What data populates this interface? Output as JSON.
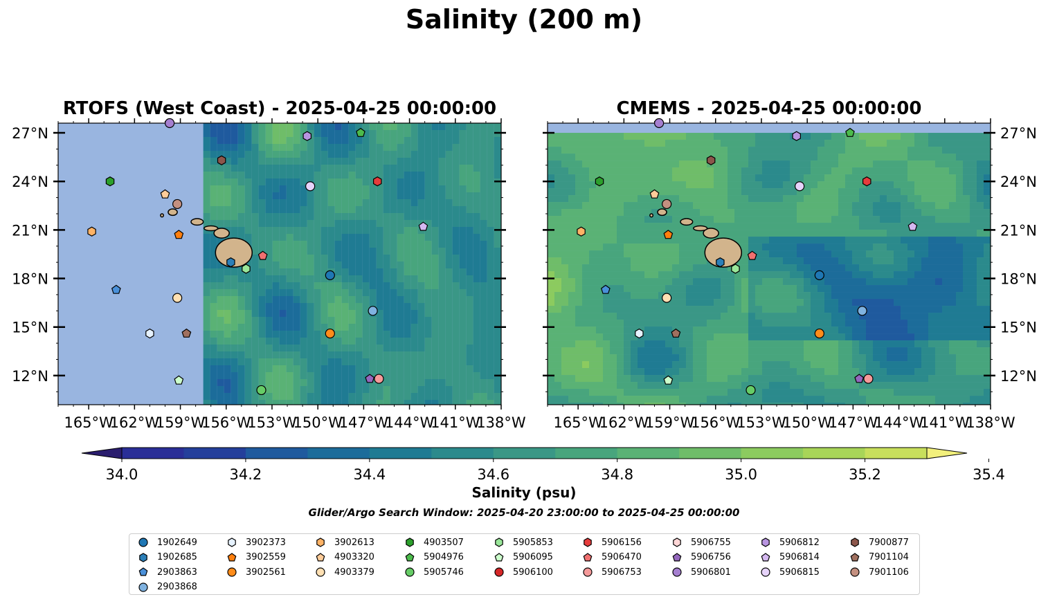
{
  "title": "Salinity (200 m)",
  "panels": [
    {
      "title": "RTOFS (West Coast) - 2025-04-25 00:00:00",
      "data_start_lon": -157.5
    },
    {
      "title": "CMEMS - 2025-04-25 00:00:00",
      "data_top_lat": 27.0
    }
  ],
  "colorbar": {
    "label": "Salinity (psu)",
    "ticks": [
      "34.0",
      "34.2",
      "34.4",
      "34.6",
      "34.8",
      "35.0",
      "35.2",
      "35.4"
    ],
    "min": 34.0,
    "max": 35.4,
    "step": 0.1,
    "extend": "both",
    "colors": [
      "#2a1d6e",
      "#2a2e97",
      "#243f9b",
      "#1f5a9e",
      "#1c6c9a",
      "#1f7b93",
      "#2b8a8c",
      "#3a9786",
      "#48a57d",
      "#5ab275",
      "#6fbd69",
      "#8ccb5f",
      "#a8d558",
      "#c8df5c",
      "#f2f07c"
    ]
  },
  "search_window": "Glider/Argo Search Window: 2025-04-20 23:00:00 to 2025-04-25 00:00:00",
  "map": {
    "lon_range": [
      -167,
      -138
    ],
    "lat_range": [
      10.2,
      27.6
    ],
    "lon_ticks": [
      -165,
      -162,
      -159,
      -156,
      -153,
      -150,
      -147,
      -144,
      -141,
      -138
    ],
    "lon_tick_labels": [
      "165°W",
      "162°W",
      "159°W",
      "156°W",
      "153°W",
      "150°W",
      "147°W",
      "144°W",
      "141°W",
      "138°W"
    ],
    "lat_ticks": [
      12,
      15,
      18,
      21,
      24,
      27
    ],
    "lat_tick_labels": [
      "12°N",
      "15°N",
      "18°N",
      "21°N",
      "24°N",
      "27°N"
    ],
    "ocean_color": "#99b5e0",
    "land_color": "#d2b48c"
  },
  "chart_data": {
    "type": "scatter",
    "title": "Salinity (200 m)",
    "series": [
      {
        "name": "1902649",
        "marker": "circle",
        "color": "#1f77b4",
        "lon": -149.2,
        "lat": 18.2
      },
      {
        "name": "1902685",
        "marker": "hexagon",
        "color": "#2c7fb8",
        "lon": -155.7,
        "lat": 19.0
      },
      {
        "name": "2903863",
        "marker": "pentagon",
        "color": "#4a90d9",
        "lon": -163.2,
        "lat": 17.3
      },
      {
        "name": "2903868",
        "marker": "circle",
        "color": "#7fb2e0",
        "lon": -146.4,
        "lat": 16.0
      },
      {
        "name": "3902373",
        "marker": "hexagon",
        "color": "#e6f2ff",
        "lon": -161.0,
        "lat": 14.6
      },
      {
        "name": "3902559",
        "marker": "pentagon",
        "color": "#ff7f0e",
        "lon": -159.1,
        "lat": 20.7
      },
      {
        "name": "3902561",
        "marker": "circle",
        "color": "#ff8c1a",
        "lon": -149.2,
        "lat": 14.6
      },
      {
        "name": "3902613",
        "marker": "hexagon",
        "color": "#ffb366",
        "lon": -164.8,
        "lat": 20.9
      },
      {
        "name": "4903320",
        "marker": "pentagon",
        "color": "#ffcc99",
        "lon": -160.0,
        "lat": 23.2
      },
      {
        "name": "4903379",
        "marker": "circle",
        "color": "#ffe0b3",
        "lon": -159.2,
        "lat": 16.8
      },
      {
        "name": "4903507",
        "marker": "hexagon",
        "color": "#2ca02c",
        "lon": -163.6,
        "lat": 24.0
      },
      {
        "name": "5904976",
        "marker": "pentagon",
        "color": "#4cbb4c",
        "lon": -147.2,
        "lat": 27.0
      },
      {
        "name": "5905746",
        "marker": "circle",
        "color": "#66cc66",
        "lon": -153.7,
        "lat": 11.1
      },
      {
        "name": "5905853",
        "marker": "hexagon",
        "color": "#99e699",
        "lon": -154.7,
        "lat": 18.6
      },
      {
        "name": "5905853",
        "marker": "hexagon",
        "color": "#99e699",
        "lon": -154.4,
        "lat": 18.7,
        "hidden": true
      },
      {
        "name": "5906095",
        "marker": "pentagon",
        "color": "#ccffcc",
        "lon": -159.1,
        "lat": 11.7
      },
      {
        "name": "5906100",
        "marker": "circle",
        "color": "#d62728",
        "lon": -146.0,
        "lat": 11.7,
        "hidden": true
      },
      {
        "name": "5906156",
        "marker": "hexagon",
        "color": "#e63c3c",
        "lon": -146.1,
        "lat": 24.0
      },
      {
        "name": "5906470",
        "marker": "pentagon",
        "color": "#f07070",
        "lon": -153.6,
        "lat": 19.4
      },
      {
        "name": "5906753",
        "marker": "circle",
        "color": "#f59a9a",
        "lon": -146.0,
        "lat": 11.8
      },
      {
        "name": "5906755",
        "marker": "hexagon",
        "color": "#ffd6d6",
        "lon": -156.5,
        "lat": 19.2,
        "hidden": true
      },
      {
        "name": "5906756",
        "marker": "pentagon",
        "color": "#9467bd",
        "lon": -146.6,
        "lat": 11.8
      },
      {
        "name": "5906801",
        "marker": "circle",
        "color": "#a57fd0",
        "lon": -159.7,
        "lat": 27.6
      },
      {
        "name": "5906812",
        "marker": "hexagon",
        "color": "#b894e0",
        "lon": -150.7,
        "lat": 26.8
      },
      {
        "name": "5906814",
        "marker": "pentagon",
        "color": "#d4b8f0",
        "lon": -143.1,
        "lat": 21.2
      },
      {
        "name": "5906815",
        "marker": "circle",
        "color": "#e6d3fa",
        "lon": -150.5,
        "lat": 23.7
      },
      {
        "name": "7900877",
        "marker": "hexagon",
        "color": "#8c564b",
        "lon": -156.3,
        "lat": 25.3
      },
      {
        "name": "7901104",
        "marker": "pentagon",
        "color": "#a0705f",
        "lon": -158.6,
        "lat": 14.6
      },
      {
        "name": "7901106",
        "marker": "circle",
        "color": "#c49080",
        "lon": -159.2,
        "lat": 22.6
      }
    ]
  },
  "legend": {
    "columns": [
      [
        {
          "label": "1902649",
          "marker": "circle",
          "color": "#1f77b4"
        },
        {
          "label": "1902685",
          "marker": "hexagon",
          "color": "#2c7fb8"
        },
        {
          "label": "2903863",
          "marker": "pentagon",
          "color": "#4a90d9"
        },
        {
          "label": "2903868",
          "marker": "circle",
          "color": "#7fb2e0"
        }
      ],
      [
        {
          "label": "3902373",
          "marker": "hexagon",
          "color": "#e6f2ff"
        },
        {
          "label": "3902559",
          "marker": "pentagon",
          "color": "#ff7f0e"
        },
        {
          "label": "3902561",
          "marker": "circle",
          "color": "#ff8c1a"
        }
      ],
      [
        {
          "label": "3902613",
          "marker": "hexagon",
          "color": "#ffb366"
        },
        {
          "label": "4903320",
          "marker": "pentagon",
          "color": "#ffcc99"
        },
        {
          "label": "4903379",
          "marker": "circle",
          "color": "#ffe0b3"
        }
      ],
      [
        {
          "label": "4903507",
          "marker": "hexagon",
          "color": "#2ca02c"
        },
        {
          "label": "5904976",
          "marker": "pentagon",
          "color": "#4cbb4c"
        },
        {
          "label": "5905746",
          "marker": "circle",
          "color": "#66cc66"
        }
      ],
      [
        {
          "label": "5905853",
          "marker": "hexagon",
          "color": "#99e699"
        },
        {
          "label": "5906095",
          "marker": "pentagon",
          "color": "#ccffcc"
        },
        {
          "label": "5906100",
          "marker": "circle",
          "color": "#d62728"
        }
      ],
      [
        {
          "label": "5906156",
          "marker": "hexagon",
          "color": "#e63c3c"
        },
        {
          "label": "5906470",
          "marker": "pentagon",
          "color": "#f07070"
        },
        {
          "label": "5906753",
          "marker": "circle",
          "color": "#f59a9a"
        }
      ],
      [
        {
          "label": "5906755",
          "marker": "hexagon",
          "color": "#ffd6d6"
        },
        {
          "label": "5906756",
          "marker": "pentagon",
          "color": "#9467bd"
        },
        {
          "label": "5906801",
          "marker": "circle",
          "color": "#a57fd0"
        }
      ],
      [
        {
          "label": "5906812",
          "marker": "hexagon",
          "color": "#b894e0"
        },
        {
          "label": "5906814",
          "marker": "pentagon",
          "color": "#d4b8f0"
        },
        {
          "label": "5906815",
          "marker": "circle",
          "color": "#e6d3fa"
        }
      ],
      [
        {
          "label": "7900877",
          "marker": "hexagon",
          "color": "#8c564b"
        },
        {
          "label": "7901104",
          "marker": "pentagon",
          "color": "#a0705f"
        },
        {
          "label": "7901106",
          "marker": "circle",
          "color": "#c49080"
        }
      ]
    ]
  }
}
